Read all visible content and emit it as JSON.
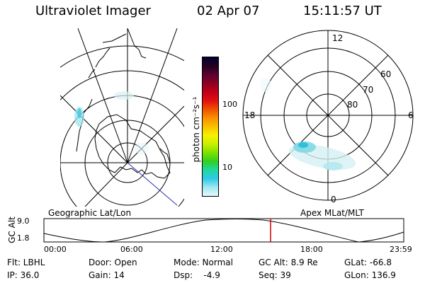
{
  "header": {
    "instrument": "Ultraviolet Imager",
    "date": "02 Apr 07",
    "time": "15:11:57 UT"
  },
  "colorbar": {
    "unit_label": "photon cm⁻²s⁻¹",
    "ticks": [
      "100",
      "10"
    ],
    "colors": [
      "#000033",
      "#220022",
      "#5a0030",
      "#8a0020",
      "#c0001a",
      "#e01010",
      "#f05000",
      "#f89000",
      "#f8c000",
      "#f8f000",
      "#c8f000",
      "#80e000",
      "#30d020",
      "#20d8a0",
      "#30c8e8",
      "#a0e8f0",
      "#e8f8fa"
    ]
  },
  "left_map": {
    "projection_label": "Geographic Lat/Lon"
  },
  "right_map": {
    "projection_label": "Apex MLat/MLT",
    "mlt_labels": [
      "12",
      "18",
      "6",
      "0"
    ],
    "lat_labels": [
      "60",
      "70",
      "80"
    ]
  },
  "timeline": {
    "axis_label": "GC Alt",
    "y_ticks": [
      "9.0",
      "1.8"
    ],
    "x_ticks": [
      "00:00",
      "06:00",
      "12:00",
      "18:00",
      "23:59"
    ],
    "current_marker_color": "#cc0000"
  },
  "status": {
    "filter": "Flt: LBHL",
    "door": "Door: Open",
    "mode": "Mode: Normal",
    "gc_alt": "GC Alt: 8.9 Re",
    "glat": "GLat: -66.8",
    "ip": "IP: 36.0",
    "gain": "Gain: 14",
    "dsp": "Dsp:    -4.9",
    "seq": "Seq: 39",
    "glon": "GLon: 136.9"
  }
}
